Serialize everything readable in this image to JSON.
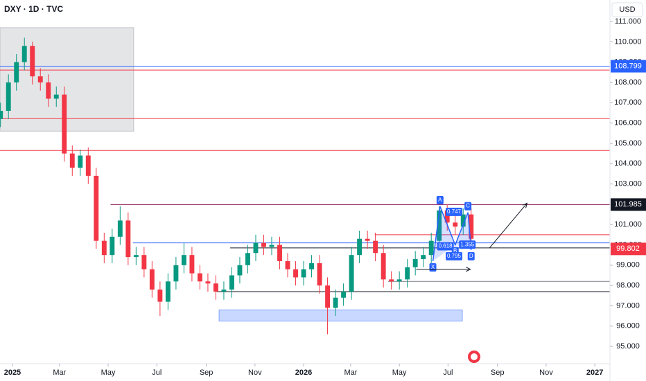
{
  "chart_data": {
    "type": "candlestick",
    "title": "DXY · 1D · TVC",
    "currency": "USD",
    "xlim": [
      -15.6,
      749
    ],
    "ylim": [
      94.15,
      112.06
    ],
    "xticks": [
      {
        "value": 0,
        "label": "2025"
      },
      {
        "value": 59,
        "label": "Mar"
      },
      {
        "value": 120,
        "label": "May"
      },
      {
        "value": 181,
        "label": "Jul"
      },
      {
        "value": 243,
        "label": "Sep"
      },
      {
        "value": 304,
        "label": "Nov"
      },
      {
        "value": 365,
        "label": "2026"
      },
      {
        "value": 424,
        "label": "Mar"
      },
      {
        "value": 485,
        "label": "May"
      },
      {
        "value": 546,
        "label": "Jul"
      },
      {
        "value": 608,
        "label": "Sep"
      },
      {
        "value": 669,
        "label": "Nov"
      },
      {
        "value": 730,
        "label": "2027"
      }
    ],
    "yticks": [
      {
        "value": 95,
        "label": "95.000"
      },
      {
        "value": 96,
        "label": "96.000"
      },
      {
        "value": 97,
        "label": "97.000"
      },
      {
        "value": 98,
        "label": "98.000"
      },
      {
        "value": 99,
        "label": "99.000"
      },
      {
        "value": 100,
        "label": "100.000"
      },
      {
        "value": 101,
        "label": "101.000"
      },
      {
        "value": 102,
        "label": "102.000"
      },
      {
        "value": 103,
        "label": "103.000"
      },
      {
        "value": 104,
        "label": "104.000"
      },
      {
        "value": 105,
        "label": "105.000"
      },
      {
        "value": 106,
        "label": "106.000"
      },
      {
        "value": 107,
        "label": "107.000"
      },
      {
        "value": 108,
        "label": "108.000"
      },
      {
        "value": 109,
        "label": "109.000"
      },
      {
        "value": 110,
        "label": "110.000"
      },
      {
        "value": 111,
        "label": "111.000"
      }
    ],
    "up_color": "#089981",
    "down_color": "#f23645",
    "x": [
      -15,
      -5,
      5,
      15,
      25,
      35,
      45,
      55,
      65,
      75,
      85,
      95,
      105,
      115,
      125,
      135,
      145,
      155,
      165,
      175,
      185,
      195,
      205,
      215,
      225,
      235,
      245,
      255,
      265,
      275,
      285,
      295,
      305,
      315,
      325,
      335,
      345,
      355,
      365,
      375,
      385,
      395,
      405,
      415,
      425,
      435,
      445,
      455,
      465,
      475,
      485,
      495,
      505,
      515,
      525,
      535,
      545,
      555,
      565,
      575
    ],
    "open": [
      106.2,
      106.6,
      108.0,
      109.0,
      109.8,
      108.3,
      108.0,
      107.2,
      107.4,
      104.5,
      103.8,
      104.4,
      103.4,
      100.2,
      99.5,
      100.4,
      101.2,
      99.4,
      99.5,
      98.8,
      97.8,
      97.2,
      98.2,
      99.0,
      99.5,
      98.6,
      98.2,
      98.1,
      97.7,
      97.8,
      98.5,
      99.0,
      99.6,
      100.1,
      99.9,
      100.0,
      99.2,
      98.8,
      98.4,
      98.8,
      99.1,
      98.0,
      96.9,
      97.4,
      97.7,
      99.5,
      100.3,
      100.2,
      99.6,
      98.3,
      98.2,
      98.3,
      98.9,
      99.3,
      99.5,
      100.2,
      101.7,
      101.1,
      100.9,
      101.5
    ],
    "high": [
      107.0,
      108.4,
      109.4,
      110.2,
      110.0,
      108.7,
      108.4,
      107.8,
      107.8,
      104.9,
      104.7,
      104.8,
      103.8,
      100.6,
      100.8,
      101.9,
      101.6,
      99.9,
      99.9,
      99.2,
      98.2,
      98.6,
      99.4,
      100.1,
      99.9,
      99.0,
      98.6,
      98.5,
      98.2,
      98.9,
      99.4,
      100.0,
      100.5,
      100.5,
      100.4,
      100.4,
      99.6,
      99.2,
      99.2,
      99.5,
      99.5,
      98.4,
      97.8,
      98.1,
      99.9,
      100.7,
      100.7,
      100.6,
      100.0,
      98.7,
      98.7,
      99.3,
      99.7,
      99.9,
      100.6,
      101.9,
      102.0,
      101.6,
      101.8,
      101.8
    ],
    "low": [
      105.8,
      106.2,
      107.6,
      108.6,
      107.9,
      107.6,
      106.8,
      106.8,
      104.1,
      103.4,
      103.4,
      103.0,
      99.8,
      99.1,
      99.1,
      100.0,
      99.0,
      99.0,
      98.4,
      97.4,
      96.5,
      96.8,
      97.8,
      98.6,
      98.2,
      97.8,
      97.7,
      97.3,
      97.3,
      97.4,
      98.1,
      98.6,
      99.2,
      99.5,
      99.5,
      98.8,
      98.4,
      98.0,
      98.0,
      98.4,
      97.6,
      95.6,
      96.5,
      97.0,
      97.3,
      99.1,
      99.8,
      99.2,
      97.9,
      97.8,
      97.8,
      97.9,
      98.5,
      98.9,
      99.1,
      99.8,
      100.7,
      100.5,
      100.5,
      99.9
    ],
    "close": [
      106.6,
      108.0,
      109.0,
      109.8,
      108.3,
      108.0,
      107.2,
      107.4,
      104.5,
      103.8,
      104.4,
      103.4,
      100.2,
      99.5,
      100.4,
      101.2,
      99.4,
      99.5,
      98.8,
      97.8,
      97.2,
      98.2,
      99.0,
      99.5,
      98.6,
      98.2,
      98.1,
      97.7,
      97.8,
      98.5,
      99.0,
      99.6,
      100.1,
      99.9,
      100.0,
      99.2,
      98.8,
      98.4,
      98.8,
      99.1,
      98.0,
      96.9,
      97.4,
      97.7,
      99.5,
      100.3,
      100.2,
      99.6,
      98.3,
      98.2,
      98.3,
      98.9,
      99.3,
      99.5,
      100.2,
      101.7,
      101.1,
      100.9,
      101.5,
      100.3
    ],
    "levels": [
      {
        "value": 108.799,
        "color": "#2962ff",
        "from": -15.6
      },
      {
        "value": 108.61,
        "color": "#f23645",
        "from": -15.6
      },
      {
        "value": 106.22,
        "color": "#f23645",
        "from": -15.6
      },
      {
        "value": 104.65,
        "color": "#f23645",
        "from": -15.6
      },
      {
        "value": 101.985,
        "color": "#880e4f",
        "from": 123
      },
      {
        "value": 100.1,
        "color": "#2962ff",
        "from": 151
      },
      {
        "value": 99.85,
        "color": "#131722",
        "from": 273
      },
      {
        "value": 97.7,
        "color": "#131722",
        "from": 256
      },
      {
        "value": 100.5,
        "color": "#f23645",
        "from": 454
      },
      {
        "value": 98.2,
        "color": "#787b86",
        "from": 471
      }
    ],
    "zones": [
      {
        "x": [
          -15.6,
          152
        ],
        "y": [
          105.6,
          110.7
        ],
        "color": "#9598a1"
      },
      {
        "x": [
          259,
          564
        ],
        "y": [
          96.25,
          96.8
        ],
        "color": "#2962ff"
      }
    ],
    "price_tags": [
      {
        "value": 108.799,
        "color": "#2962ff"
      },
      {
        "value": 101.985,
        "color": "#131722"
      },
      {
        "value": 99.802,
        "color": "#f23645"
      }
    ],
    "pattern": {
      "points": [
        "X",
        "A",
        "B",
        "C",
        "D"
      ],
      "x": [
        527,
        536,
        555,
        571,
        575
      ],
      "y": [
        99.2,
        101.9,
        100.0,
        101.6,
        99.75
      ],
      "ratios": [
        0.747,
        1.355,
        0.618,
        0.795
      ]
    },
    "arrows": [
      {
        "x": [
          598,
          645
        ],
        "y": [
          99.85,
          102.05
        ]
      },
      {
        "x": [
          506,
          574
        ],
        "y": [
          98.8,
          98.8
        ]
      }
    ]
  }
}
